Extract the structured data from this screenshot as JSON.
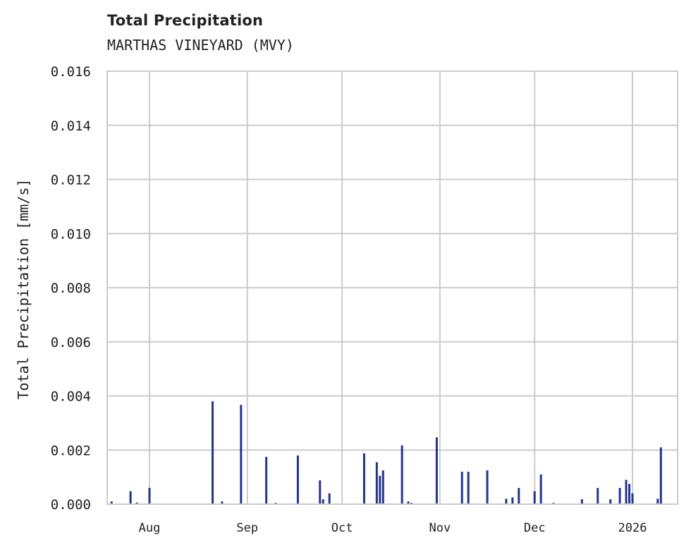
{
  "header": {
    "title": "Total Precipitation",
    "subtitle": "MARTHAS VINEYARD (MVY)"
  },
  "colors": {
    "bar": "#24358f",
    "grid": "#cccccc",
    "text": "#222222",
    "background": "#ffffff"
  },
  "chart_data": {
    "type": "bar",
    "title": "Total Precipitation",
    "subtitle": "MARTHAS VINEYARD (MVY)",
    "xlabel": "",
    "ylabel": "Total Precipitation [mm/s]",
    "ylim": [
      0.0,
      0.016
    ],
    "yticks": [
      "0.000",
      "0.002",
      "0.004",
      "0.006",
      "0.008",
      "0.010",
      "0.012",
      "0.014",
      "0.016"
    ],
    "xticks": [
      "Aug",
      "Sep",
      "Oct",
      "Nov",
      "Dec",
      "2026"
    ],
    "grid": true,
    "legend": "none",
    "series": [
      {
        "name": "Total Precipitation",
        "points": [
          {
            "date": "2025-07-20",
            "value": 0.0001
          },
          {
            "date": "2025-07-26",
            "value": 0.00048
          },
          {
            "date": "2025-07-28",
            "value": 6e-05
          },
          {
            "date": "2025-08-01",
            "value": 0.0006
          },
          {
            "date": "2025-08-21",
            "value": 0.0038
          },
          {
            "date": "2025-08-24",
            "value": 0.0001
          },
          {
            "date": "2025-08-30",
            "value": 0.00367
          },
          {
            "date": "2025-09-07",
            "value": 0.00175
          },
          {
            "date": "2025-09-10",
            "value": 5e-05
          },
          {
            "date": "2025-09-17",
            "value": 0.0018
          },
          {
            "date": "2025-09-24",
            "value": 0.00088
          },
          {
            "date": "2025-09-25",
            "value": 0.00018
          },
          {
            "date": "2025-09-27",
            "value": 0.0004
          },
          {
            "date": "2025-10-08",
            "value": 0.00188
          },
          {
            "date": "2025-10-12",
            "value": 0.00155
          },
          {
            "date": "2025-10-13",
            "value": 0.00105
          },
          {
            "date": "2025-10-14",
            "value": 0.00125
          },
          {
            "date": "2025-10-20",
            "value": 0.00217
          },
          {
            "date": "2025-10-22",
            "value": 0.0001
          },
          {
            "date": "2025-10-23",
            "value": 5e-05
          },
          {
            "date": "2025-10-31",
            "value": 0.00247
          },
          {
            "date": "2025-11-08",
            "value": 0.0012
          },
          {
            "date": "2025-11-10",
            "value": 0.0012
          },
          {
            "date": "2025-11-16",
            "value": 0.00125
          },
          {
            "date": "2025-11-22",
            "value": 0.0002
          },
          {
            "date": "2025-11-24",
            "value": 0.00025
          },
          {
            "date": "2025-11-26",
            "value": 0.0006
          },
          {
            "date": "2025-12-01",
            "value": 0.00048
          },
          {
            "date": "2025-12-03",
            "value": 0.0011
          },
          {
            "date": "2025-12-07",
            "value": 5e-05
          },
          {
            "date": "2025-12-16",
            "value": 0.00018
          },
          {
            "date": "2025-12-21",
            "value": 0.0006
          },
          {
            "date": "2025-12-25",
            "value": 0.00018
          },
          {
            "date": "2025-12-28",
            "value": 0.0006
          },
          {
            "date": "2025-12-30",
            "value": 0.0009
          },
          {
            "date": "2025-12-31",
            "value": 0.00075
          },
          {
            "date": "2026-01-01",
            "value": 0.0004
          },
          {
            "date": "2026-01-09",
            "value": 0.0002
          },
          {
            "date": "2026-01-10",
            "value": 0.0021
          }
        ]
      }
    ]
  }
}
